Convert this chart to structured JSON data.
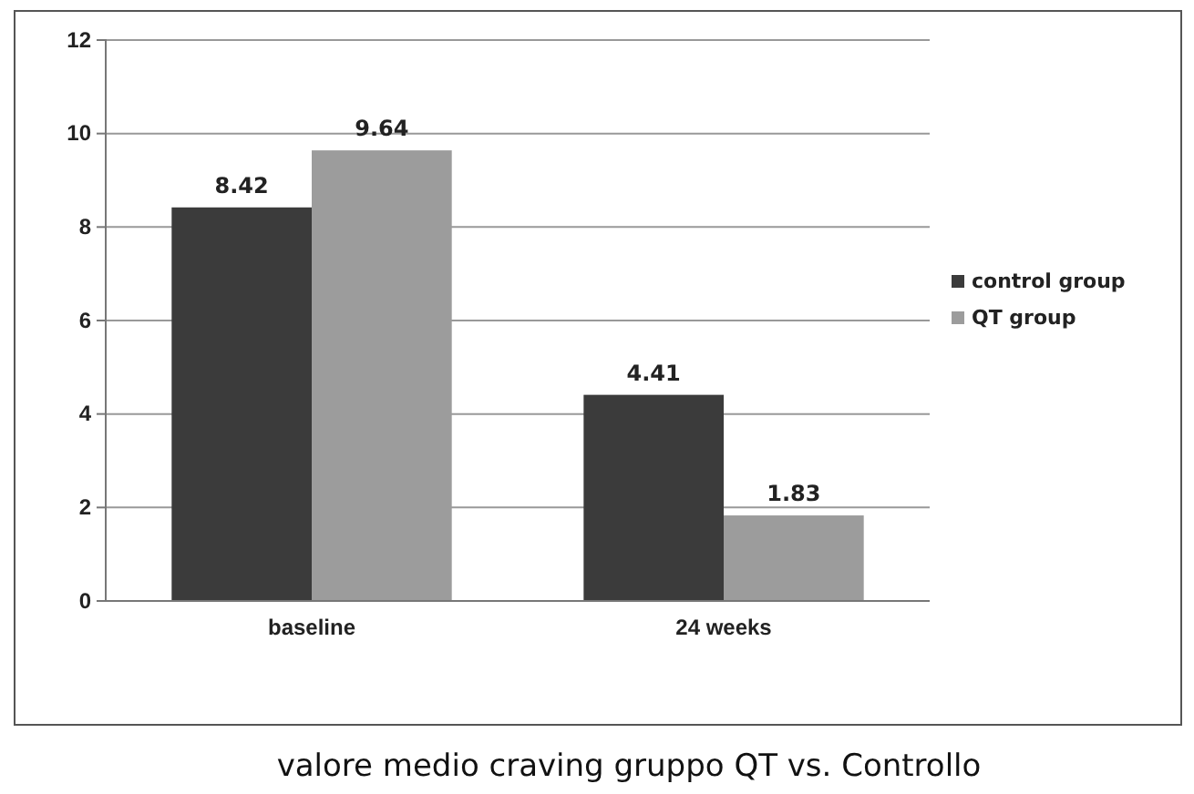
{
  "chart_data": {
    "type": "bar",
    "title": "valore medio craving gruppo QT vs. Controllo",
    "categories": [
      "baseline",
      "24 weeks"
    ],
    "series": [
      {
        "name": "control group",
        "color": "#3b3b3b",
        "values": [
          8.42,
          4.41
        ]
      },
      {
        "name": "QT group",
        "color": "#9c9c9c",
        "values": [
          9.64,
          1.83
        ]
      }
    ],
    "ylim": [
      0,
      12
    ],
    "yticks": [
      0,
      2,
      4,
      6,
      8,
      10,
      12
    ],
    "grid": "y",
    "legend": "right",
    "data_labels": true
  }
}
